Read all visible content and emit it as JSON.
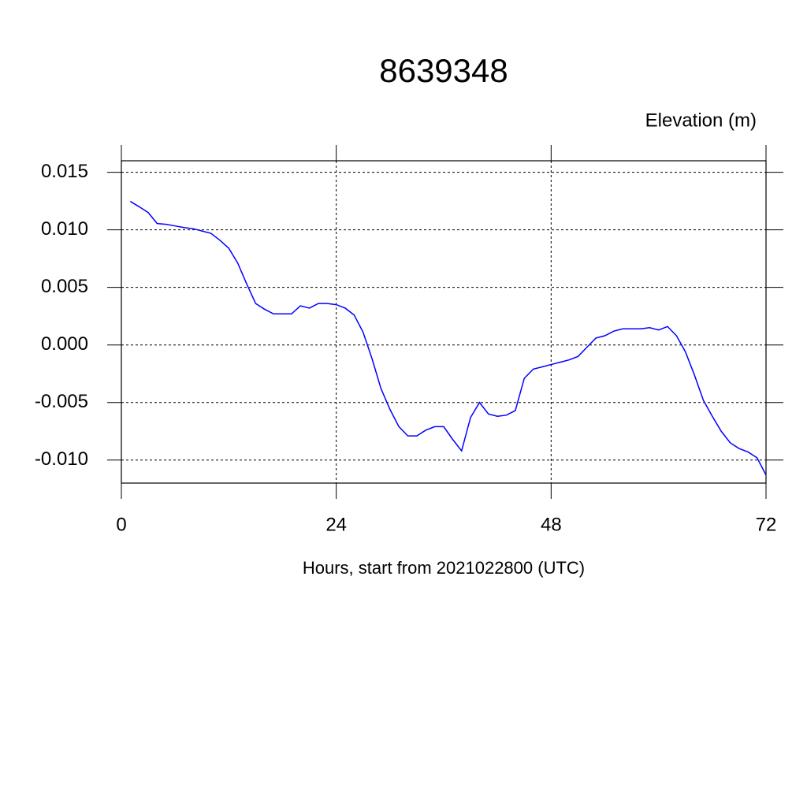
{
  "chart_data": {
    "type": "line",
    "title": "8639348",
    "y_label": "Elevation (m)",
    "x_label": "Hours, start from 2021022800 (UTC)",
    "x": [
      1,
      2,
      3,
      4,
      5,
      6,
      7,
      8,
      9,
      10,
      11,
      12,
      13,
      14,
      15,
      16,
      17,
      18,
      19,
      20,
      21,
      22,
      23,
      24,
      25,
      26,
      27,
      28,
      29,
      30,
      31,
      32,
      33,
      34,
      35,
      36,
      37,
      38,
      39,
      40,
      41,
      42,
      43,
      44,
      45,
      46,
      47,
      48,
      49,
      50,
      51,
      52,
      53,
      54,
      55,
      56,
      57,
      58,
      59,
      60,
      61,
      62,
      63,
      64,
      65,
      66,
      67,
      68,
      69,
      70,
      71,
      72
    ],
    "series": [
      {
        "color": "#0000ff",
        "values": [
          0.01247,
          0.012,
          0.0115,
          0.01055,
          0.01048,
          0.01034,
          0.0102,
          0.0101,
          0.0099,
          0.0097,
          0.0091,
          0.0084,
          0.0071,
          0.0053,
          0.0036,
          0.0031,
          0.0027,
          0.0027,
          0.0027,
          0.0034,
          0.0032,
          0.0036,
          0.0036,
          0.0035,
          0.0032,
          0.0026,
          0.0011,
          -0.0012,
          -0.0038,
          -0.0056,
          -0.0071,
          -0.0079,
          -0.0079,
          -0.0074,
          -0.0071,
          -0.0071,
          -0.0082,
          -0.0092,
          -0.0063,
          -0.005,
          -0.006,
          -0.0062,
          -0.0061,
          -0.0057,
          -0.0029,
          -0.0021,
          -0.0019,
          -0.0017,
          -0.0015,
          -0.0013,
          -0.001,
          -0.0002,
          0.0006,
          0.0008,
          0.0012,
          0.0014,
          0.0014,
          0.0014,
          0.0015,
          0.0013,
          0.0016,
          0.0008,
          -0.0006,
          -0.0026,
          -0.0048,
          -0.0062,
          -0.0075,
          -0.0085,
          -0.009,
          -0.0093,
          -0.0098,
          -0.0113
        ]
      }
    ],
    "xlim": [
      0,
      72
    ],
    "xticks": [
      0,
      24,
      48,
      72
    ],
    "ylim": [
      -0.012,
      0.016
    ],
    "yticks": [
      {
        "value": -0.01,
        "label": "-0.010"
      },
      -0.005,
      {
        "value": 0,
        "label": "0.000"
      },
      0.005,
      {
        "value": 0.01,
        "label": "0.010"
      },
      0.015
    ],
    "grid": true
  }
}
